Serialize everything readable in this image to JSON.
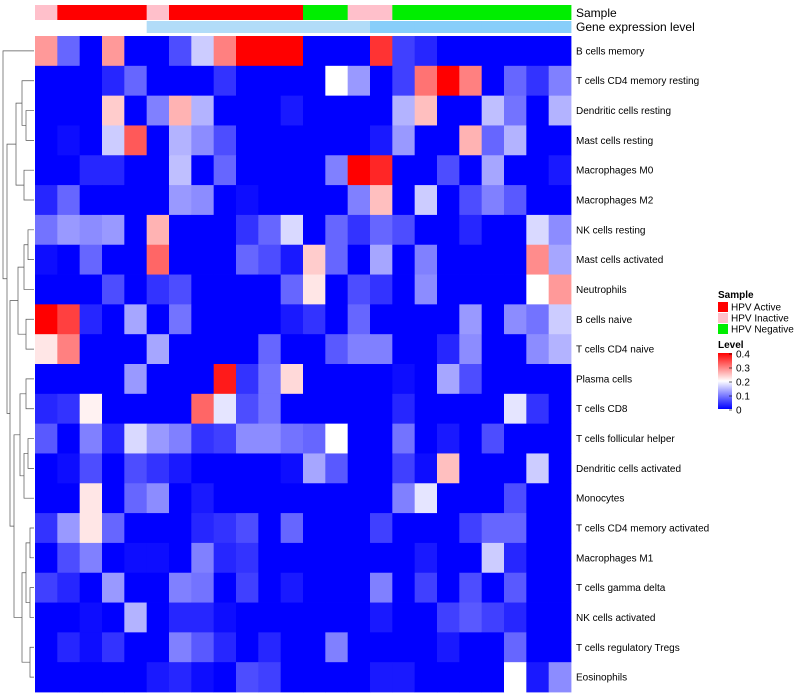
{
  "chart_data": {
    "type": "heatmap",
    "annotation_bars": [
      "Sample",
      "Gene expression level"
    ],
    "columns": 24,
    "sample_groups": [
      "inactive",
      "active",
      "active",
      "active",
      "active",
      "inactive",
      "active",
      "active",
      "active",
      "active",
      "active",
      "active",
      "negative",
      "negative",
      "inactive",
      "inactive",
      "negative",
      "negative",
      "negative",
      "negative",
      "negative",
      "negative",
      "negative",
      "negative"
    ],
    "expression_bar": [
      "white",
      "white",
      "white",
      "white",
      "white",
      "light",
      "light",
      "light",
      "light",
      "light",
      "light",
      "light",
      "light",
      "light",
      "light",
      "blue",
      "blue",
      "blue",
      "blue",
      "blue",
      "blue",
      "blue",
      "blue",
      "blue"
    ],
    "rows": [
      "B cells memory",
      "T cells CD4 memory resting",
      "Dendritic cells resting",
      "Mast cells resting",
      "Macrophages M0",
      "Macrophages M2",
      "NK cells resting",
      "Mast cells activated",
      "Neutrophils",
      "B cells naive",
      "T cells CD4 naive",
      "Plasma cells",
      "T cells CD8",
      "T cells follicular helper",
      "Dendritic cells activated",
      "Monocytes",
      "T cells CD4 memory activated",
      "Macrophages M1",
      "T cells gamma delta",
      "NK cells activated",
      "T cells regulatory  Tregs",
      "Eosinophils"
    ],
    "values": [
      [
        0.28,
        0.08,
        0,
        0.28,
        0,
        0,
        0.06,
        0.16,
        0.3,
        0.4,
        0.4,
        0.4,
        0,
        0,
        0,
        0.36,
        0.05,
        0.03,
        0,
        0,
        0,
        0,
        0,
        0
      ],
      [
        0,
        0,
        0,
        0.03,
        0.08,
        0,
        0,
        0,
        0.04,
        0,
        0,
        0,
        0,
        0.2,
        0.12,
        0,
        0.05,
        0.31,
        0.4,
        0.3,
        0,
        0.08,
        0.04,
        0.1
      ],
      [
        0,
        0,
        0,
        0.24,
        0,
        0.1,
        0.26,
        0.14,
        0,
        0,
        0,
        0.02,
        0,
        0,
        0,
        0,
        0.14,
        0.25,
        0,
        0,
        0.15,
        0.09,
        0,
        0.14
      ],
      [
        0,
        0.01,
        0,
        0.16,
        0.33,
        0,
        0.14,
        0.11,
        0.06,
        0,
        0,
        0,
        0,
        0,
        0,
        0.02,
        0.12,
        0,
        0,
        0.26,
        0.08,
        0.14,
        0,
        0
      ],
      [
        0,
        0,
        0.03,
        0.03,
        0,
        0,
        0.15,
        0,
        0.08,
        0,
        0,
        0,
        0,
        0.1,
        0.4,
        0.37,
        0,
        0,
        0.06,
        0,
        0.13,
        0,
        0,
        0.02
      ],
      [
        0.03,
        0.08,
        0,
        0,
        0,
        0,
        0.12,
        0.11,
        0,
        0.01,
        0,
        0,
        0,
        0,
        0.1,
        0.25,
        0,
        0.16,
        0,
        0.06,
        0.1,
        0.07,
        0,
        0
      ],
      [
        0.09,
        0.12,
        0.11,
        0.12,
        0,
        0.26,
        0,
        0,
        0,
        0.04,
        0.08,
        0.17,
        0,
        0.08,
        0.04,
        0.08,
        0.06,
        0,
        0,
        0.03,
        0,
        0,
        0.17,
        0.11
      ],
      [
        0.01,
        0,
        0.08,
        0,
        0,
        0.32,
        0,
        0,
        0,
        0.08,
        0.06,
        0.02,
        0.24,
        0.08,
        0,
        0.13,
        0,
        0.1,
        0,
        0,
        0,
        0,
        0.29,
        0.13
      ],
      [
        0,
        0,
        0,
        0.06,
        0,
        0.04,
        0.06,
        0,
        0,
        0,
        0,
        0.08,
        0.22,
        0,
        0.06,
        0.04,
        0,
        0.11,
        0,
        0,
        0,
        0,
        0.2,
        0.28
      ],
      [
        0.4,
        0.35,
        0.03,
        0,
        0.13,
        0,
        0.09,
        0,
        0,
        0,
        0,
        0.02,
        0.04,
        0,
        0.08,
        0,
        0,
        0,
        0,
        0.12,
        0,
        0.11,
        0.09,
        0.16
      ],
      [
        0.22,
        0.3,
        0,
        0,
        0,
        0.13,
        0,
        0,
        0,
        0,
        0.08,
        0,
        0,
        0.07,
        0.1,
        0.1,
        0,
        0,
        0.03,
        0.11,
        0,
        0,
        0.11,
        0.14
      ],
      [
        0,
        0,
        0,
        0,
        0.12,
        0,
        0,
        0,
        0.38,
        0.04,
        0.09,
        0.23,
        0,
        0,
        0,
        0,
        0.01,
        0,
        0.13,
        0.06,
        0,
        0,
        0,
        0
      ],
      [
        0.03,
        0.04,
        0.21,
        0,
        0,
        0,
        0,
        0.32,
        0.18,
        0.06,
        0.09,
        0,
        0,
        0,
        0,
        0,
        0.03,
        0,
        0,
        0,
        0,
        0.18,
        0.04,
        0
      ],
      [
        0.07,
        0,
        0.1,
        0.03,
        0.17,
        0.12,
        0.1,
        0.04,
        0.05,
        0.11,
        0.11,
        0.09,
        0.08,
        0.2,
        0,
        0,
        0.09,
        0,
        0.02,
        0,
        0.06,
        0,
        0,
        0
      ],
      [
        0,
        0.01,
        0.06,
        0,
        0.06,
        0.04,
        0.02,
        0,
        0,
        0,
        0,
        0.01,
        0.13,
        0.07,
        0,
        0,
        0.05,
        0.01,
        0.25,
        0,
        0,
        0,
        0.16,
        0
      ],
      [
        0,
        0,
        0.22,
        0,
        0.08,
        0.11,
        0,
        0.02,
        0,
        0,
        0,
        0,
        0,
        0,
        0,
        0,
        0.1,
        0.18,
        0,
        0,
        0,
        0.06,
        0,
        0
      ],
      [
        0.04,
        0.12,
        0.22,
        0.08,
        0,
        0,
        0,
        0.03,
        0.04,
        0.06,
        0,
        0.08,
        0,
        0,
        0,
        0.05,
        0,
        0,
        0,
        0.05,
        0.08,
        0.08,
        0,
        0
      ],
      [
        0,
        0.06,
        0.1,
        0,
        0.01,
        0.01,
        0,
        0.1,
        0.03,
        0.04,
        0,
        0,
        0,
        0,
        0,
        0,
        0,
        0.02,
        0,
        0,
        0.16,
        0.03,
        0,
        0
      ],
      [
        0.05,
        0.03,
        0,
        0.12,
        0,
        0,
        0.1,
        0.09,
        0,
        0.05,
        0,
        0.02,
        0,
        0,
        0,
        0.1,
        0,
        0.05,
        0,
        0.06,
        0,
        0.07,
        0,
        0
      ],
      [
        0,
        0,
        0.01,
        0,
        0.14,
        0,
        0.03,
        0.03,
        0.01,
        0,
        0,
        0,
        0,
        0,
        0,
        0.02,
        0,
        0,
        0.05,
        0.07,
        0.05,
        0.03,
        0,
        0
      ],
      [
        0,
        0.03,
        0.01,
        0.04,
        0,
        0,
        0.1,
        0.07,
        0.03,
        0,
        0.03,
        0,
        0,
        0.1,
        0,
        0,
        0,
        0,
        0.02,
        0,
        0,
        0.08,
        0,
        0
      ],
      [
        0,
        0,
        0,
        0,
        0,
        0.02,
        0.03,
        0.01,
        0,
        0.06,
        0.05,
        0,
        0,
        0,
        0,
        0.02,
        0.02,
        0,
        0,
        0,
        0,
        0.2,
        0.02,
        0.11
      ]
    ],
    "legend": {
      "sample_title": "Sample",
      "sample_items": [
        {
          "label": "HPV Active",
          "color": "#ff0000"
        },
        {
          "label": "HPV Inactive",
          "color": "#ffc0cb"
        },
        {
          "label": "HPV Negative",
          "color": "#00ee00"
        }
      ],
      "level_title": "Level",
      "level_range": [
        0,
        0.4
      ],
      "level_ticks": [
        "0.4",
        "0.3",
        "0.2",
        "0.1",
        "0"
      ]
    },
    "colors": {
      "low": "#0000ff",
      "mid": "#ffffff",
      "high": "#ff0000",
      "expr_white": "#ffffff",
      "expr_light": "#b2dcf8",
      "expr_blue": "#87cefa"
    }
  }
}
